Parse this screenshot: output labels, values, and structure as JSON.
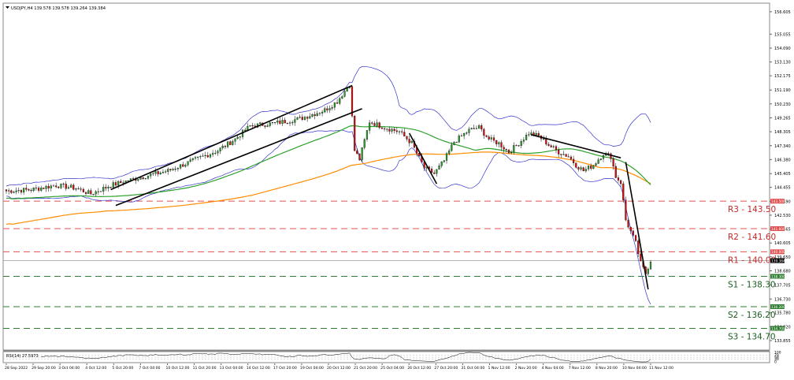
{
  "window": {
    "symbol_line": "USDJPY,H4 139.578 139.578 139.264 139.384"
  },
  "chart_data": {
    "type": "candlestick",
    "symbol": "USDJPY",
    "timeframe": "H4",
    "ohlc": {
      "open": 139.578,
      "high": 139.578,
      "low": 139.264,
      "close": 139.384
    },
    "ylim": [
      133.2,
      157.2
    ],
    "y_ticks": [
      "156.605",
      "155.055",
      "154.090",
      "153.130",
      "152.175",
      "151.190",
      "150.230",
      "149.265",
      "148.305",
      "147.340",
      "146.380",
      "145.405",
      "144.455",
      "143.490",
      "142.530",
      "141.565",
      "140.605",
      "139.650",
      "138.680",
      "137.705",
      "136.730",
      "135.780",
      "134.820",
      "133.855"
    ],
    "x_ticks": [
      "28 Sep 2022",
      "29 Sep 20:00",
      "3 Oct 04:00",
      "4 Oct 12:00",
      "5 Oct 20:00",
      "7 Oct 04:00",
      "10 Oct 12:00",
      "11 Oct 20:00",
      "13 Oct 04:00",
      "14 Oct 12:00",
      "17 Oct 20:00",
      "19 Oct 04:00",
      "20 Oct 12:00",
      "21 Oct 20:00",
      "25 Oct 04:00",
      "26 Oct 12:00",
      "27 Oct 20:00",
      "31 Oct 04:00",
      "1 Nov 12:00",
      "2 Nov 20:00",
      "4 Nov 04:00",
      "7 Nov 12:00",
      "8 Nov 20:00",
      "10 Nov 04:00",
      "11 Nov 12:00"
    ],
    "levels": [
      {
        "label": "R3 - 143.50",
        "value": 143.5,
        "tag": "143.500",
        "color": "#e05050",
        "kind": "resistance"
      },
      {
        "label": "R2 - 141.60",
        "value": 141.6,
        "tag": "141.600",
        "color": "#e05050",
        "kind": "resistance"
      },
      {
        "label": "R1 - 140.00",
        "value": 140.0,
        "tag": "140.000",
        "color": "#e05050",
        "kind": "resistance"
      },
      {
        "label": "S1 - 138.30",
        "value": 138.3,
        "tag": "138.300",
        "color": "#2e7d32",
        "kind": "support"
      },
      {
        "label": "S2 - 136.20",
        "value": 136.2,
        "tag": "136.200",
        "color": "#2e7d32",
        "kind": "support"
      },
      {
        "label": "S3 - 134.70",
        "value": 134.7,
        "tag": "134.700",
        "color": "#2e7d32",
        "kind": "support"
      }
    ],
    "current_price": {
      "value": 139.384,
      "tag": "139.384"
    },
    "rsi": {
      "label": "RSI(14) 27.5973",
      "value": 27.5973,
      "ylim": [
        0,
        100
      ],
      "ticks": [
        "100",
        "70",
        "50",
        "30",
        "0"
      ]
    },
    "colors": {
      "bull": "#2e9e2e",
      "bear": "#d01010",
      "sma_fast": "#2ca02c",
      "sma_slow": "#ff8c00",
      "bands": "#3333cc",
      "trendline": "#000000"
    }
  }
}
